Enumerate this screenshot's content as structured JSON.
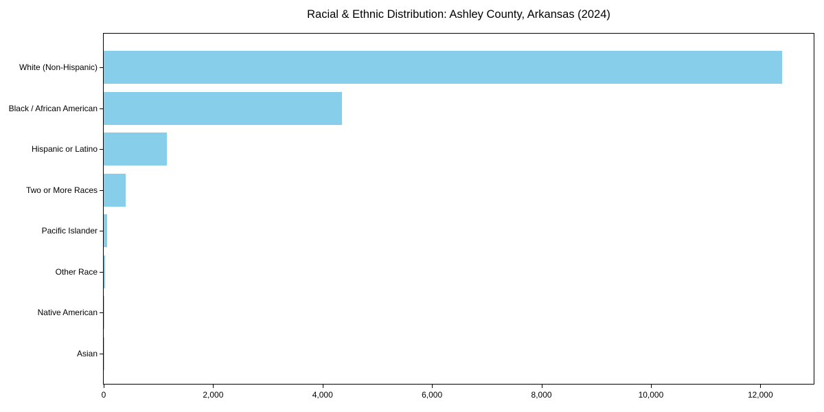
{
  "chart_data": {
    "type": "bar",
    "orientation": "horizontal",
    "title": "Racial & Ethnic Distribution: Ashley County, Arkansas (2024)",
    "xlabel": "",
    "ylabel": "",
    "categories": [
      "White (Non-Hispanic)",
      "Black / African American",
      "Hispanic or Latino",
      "Two or More Races",
      "Pacific Islander",
      "Other Race",
      "Native American",
      "Asian"
    ],
    "values": [
      12400,
      4350,
      1160,
      400,
      60,
      20,
      15,
      5
    ],
    "xlim": [
      0,
      13000
    ],
    "x_ticks": [
      0,
      2000,
      4000,
      6000,
      8000,
      10000,
      12000
    ],
    "x_tick_labels": [
      "0",
      "2,000",
      "4,000",
      "6,000",
      "8,000",
      "10,000",
      "12,000"
    ],
    "bar_color": "#87CEEB",
    "axis_color": "#000000",
    "background_color": "#ffffff",
    "grid": false,
    "legend": "none"
  }
}
